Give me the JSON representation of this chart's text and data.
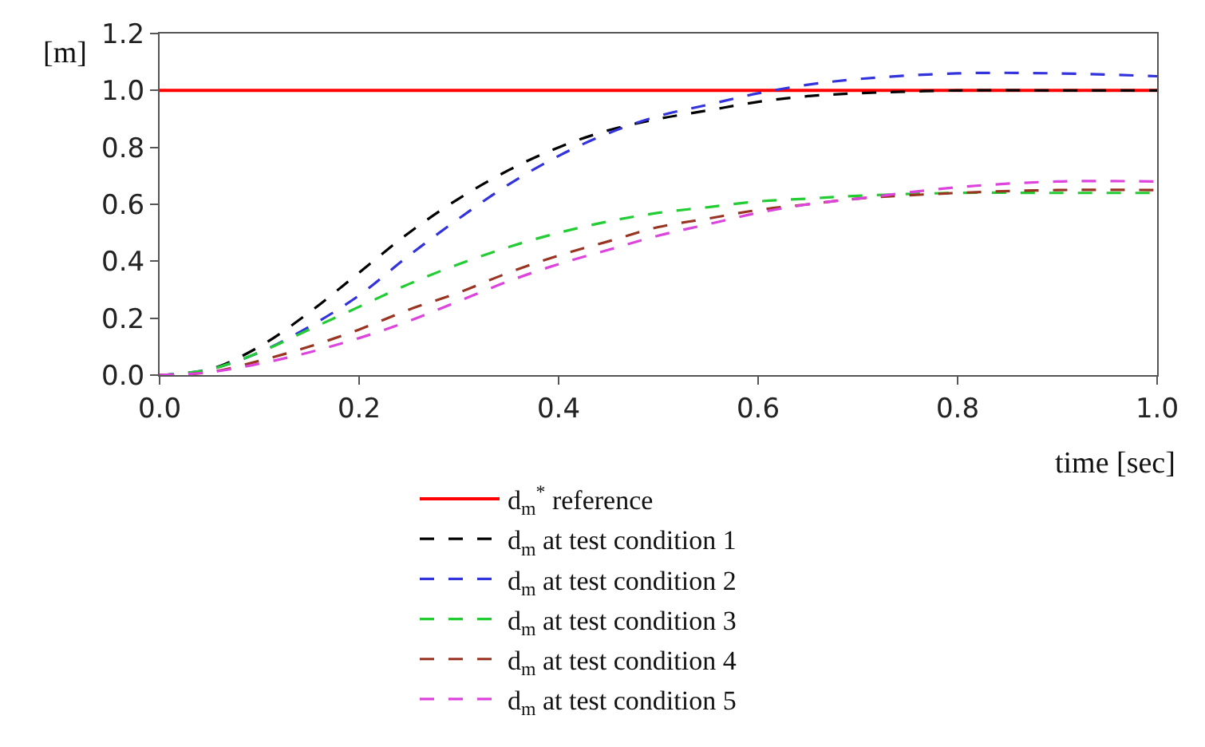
{
  "chart_data": {
    "type": "line",
    "xlabel": "time [sec]",
    "ylabel": "[m]",
    "x": [
      0,
      0.05,
      0.1,
      0.15,
      0.2,
      0.25,
      0.3,
      0.35,
      0.4,
      0.45,
      0.5,
      0.55,
      0.6,
      0.65,
      0.7,
      0.8,
      0.9,
      1.0
    ],
    "series": [
      {
        "name": "d$_{m}$$^{*}$ reference",
        "color": "#ff0000",
        "line_style": "solid",
        "values": [
          1.0,
          1.0,
          1.0,
          1.0,
          1.0,
          1.0,
          1.0,
          1.0,
          1.0,
          1.0,
          1.0,
          1.0,
          1.0,
          1.0,
          1.0,
          1.0,
          1.0,
          1.0
        ]
      },
      {
        "name": "d$_{m}$ at test condition 1",
        "color": "#000000",
        "line_style": "dashed",
        "values": [
          0,
          0.02,
          0.1,
          0.22,
          0.36,
          0.5,
          0.62,
          0.72,
          0.8,
          0.86,
          0.9,
          0.93,
          0.96,
          0.98,
          0.99,
          1.0,
          1.0,
          1.0
        ]
      },
      {
        "name": "d$_{m}$ at test condition 2",
        "color": "#3333dd",
        "line_style": "dashed",
        "values": [
          0,
          0.02,
          0.08,
          0.17,
          0.28,
          0.42,
          0.55,
          0.67,
          0.77,
          0.85,
          0.91,
          0.95,
          0.99,
          1.02,
          1.04,
          1.06,
          1.06,
          1.05
        ]
      },
      {
        "name": "d$_{m}$ at test condition 3",
        "color": "#22cc33",
        "line_style": "dashed",
        "values": [
          0,
          0.02,
          0.08,
          0.16,
          0.24,
          0.32,
          0.39,
          0.45,
          0.5,
          0.54,
          0.57,
          0.59,
          0.61,
          0.62,
          0.63,
          0.64,
          0.64,
          0.64
        ]
      },
      {
        "name": "d$_{m}$ at test condition 4",
        "color": "#993322",
        "line_style": "dashed",
        "values": [
          0,
          0.01,
          0.05,
          0.1,
          0.16,
          0.23,
          0.29,
          0.36,
          0.42,
          0.47,
          0.52,
          0.55,
          0.58,
          0.6,
          0.62,
          0.64,
          0.65,
          0.65
        ]
      },
      {
        "name": "d$_{m}$ at test condition 5",
        "color": "#dd44dd",
        "line_style": "dashed",
        "values": [
          0,
          0.01,
          0.04,
          0.08,
          0.13,
          0.19,
          0.26,
          0.33,
          0.39,
          0.44,
          0.49,
          0.53,
          0.57,
          0.6,
          0.62,
          0.66,
          0.68,
          0.68
        ]
      }
    ],
    "xlim": [
      0,
      1.0
    ],
    "xticks": [
      {
        "value": 0,
        "label": "0.0"
      },
      0.2,
      0.4,
      0.6,
      0.8,
      {
        "value": 1.0,
        "label": "1.0"
      }
    ],
    "ylim": [
      0,
      1.2
    ],
    "yticks": [
      {
        "value": 0,
        "label": "0.0"
      },
      0.2,
      0.4,
      0.6,
      0.8,
      {
        "value": 1.0,
        "label": "1.0"
      },
      1.2
    ],
    "legend": "bottom",
    "marker": "none"
  }
}
